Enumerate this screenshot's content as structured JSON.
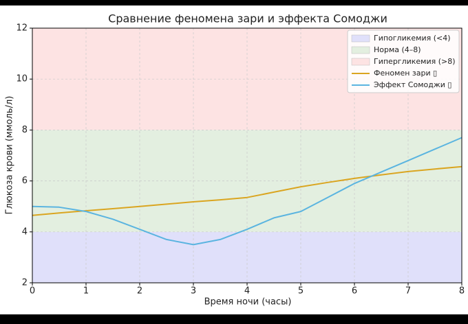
{
  "chart_data": {
    "type": "line",
    "title": "Сравнение феномена зари и эффекта Сомоджи",
    "x_label": "Время ночи (часы)",
    "y_label": "Глюкоза крови (ммоль/л)",
    "x": [
      0,
      0.5,
      1,
      1.5,
      2,
      2.5,
      3,
      3.5,
      4,
      4.5,
      5,
      5.5,
      6,
      6.5,
      7,
      7.5,
      8
    ],
    "series": [
      {
        "name": "Феномен зари ▯",
        "color": "#daa520",
        "values": [
          4.65,
          4.74,
          4.83,
          4.91,
          5.0,
          5.09,
          5.18,
          5.26,
          5.35,
          5.56,
          5.77,
          5.94,
          6.1,
          6.24,
          6.37,
          6.47,
          6.56
        ]
      },
      {
        "name": "Эффект Сомоджи ▯",
        "color": "#5ab4e0",
        "values": [
          5.0,
          4.97,
          4.8,
          4.5,
          4.1,
          3.7,
          3.5,
          3.7,
          4.1,
          4.55,
          4.8,
          5.35,
          5.9,
          6.35,
          6.8,
          7.25,
          7.7
        ]
      }
    ],
    "bands": [
      {
        "name": "Гипогликемия (<4)",
        "range": [
          2,
          4
        ],
        "color": "#e0e0fa"
      },
      {
        "name": "Норма (4–8)",
        "range": [
          4,
          8
        ],
        "color": "#e3efe0"
      },
      {
        "name": "Гипергликемия (>8)",
        "range": [
          8,
          12
        ],
        "color": "#fde3e3"
      }
    ],
    "xlim": [
      0,
      8
    ],
    "ylim": [
      2,
      12
    ],
    "xticks": [
      0,
      1,
      2,
      3,
      4,
      5,
      6,
      7,
      8
    ],
    "yticks": [
      2,
      4,
      6,
      8,
      10,
      12
    ],
    "grid": true,
    "legend": "upper right"
  }
}
